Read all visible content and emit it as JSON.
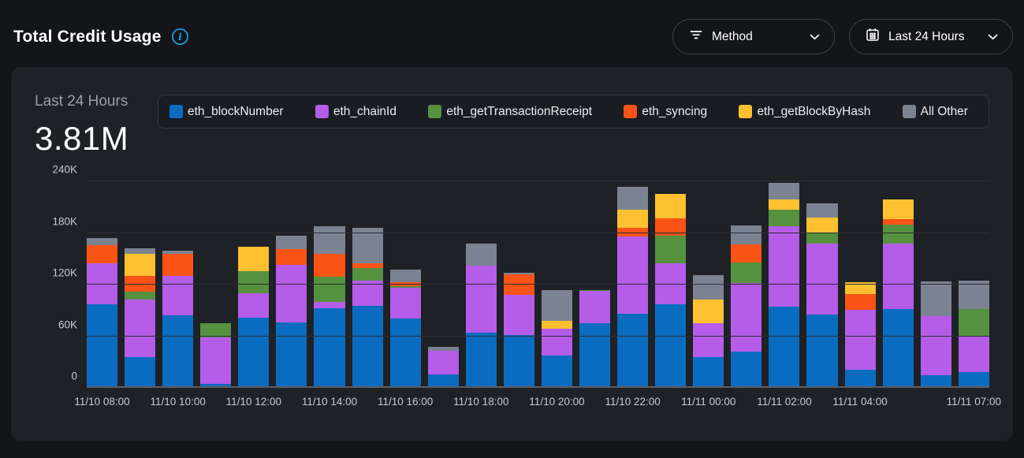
{
  "header": {
    "title": "Total Credit Usage",
    "filters": {
      "method_label": "Method",
      "range_label": "Last 24 Hours"
    }
  },
  "summary": {
    "period_label": "Last 24 Hours",
    "total_value": "3.81M"
  },
  "colors": {
    "accent_blue": "#1f9cea",
    "card_background": "#1e2126",
    "page_background": "#131518"
  },
  "chart_data": {
    "type": "bar",
    "stacked": true,
    "title": "Total Credit Usage - Last 24 Hours",
    "xlabel": "",
    "ylabel": "",
    "ylim": [
      0,
      240000
    ],
    "ytick_labels": [
      "0",
      "60K",
      "120K",
      "180K",
      "240K"
    ],
    "grid": true,
    "legend_position": "top",
    "categories": [
      "11/10 08:00",
      "11/10 09:00",
      "11/10 10:00",
      "11/10 11:00",
      "11/10 12:00",
      "11/10 13:00",
      "11/10 14:00",
      "11/10 15:00",
      "11/10 16:00",
      "11/10 17:00",
      "11/10 18:00",
      "11/10 19:00",
      "11/10 20:00",
      "11/10 21:00",
      "11/10 22:00",
      "11/10 23:00",
      "11/11 00:00",
      "11/11 01:00",
      "11/11 02:00",
      "11/11 03:00",
      "11/11 04:00",
      "11/11 05:00",
      "11/11 06:00",
      "11/11 07:00"
    ],
    "xtick_labels": [
      "11/10 08:00",
      "",
      "11/10 10:00",
      "",
      "11/10 12:00",
      "",
      "11/10 14:00",
      "",
      "11/10 16:00",
      "",
      "11/10 18:00",
      "",
      "11/10 20:00",
      "",
      "11/10 22:00",
      "",
      "11/11 00:00",
      "",
      "11/11 02:00",
      "",
      "11/11 04:00",
      "",
      "",
      "11/11 07:00"
    ],
    "series": [
      {
        "name": "eth_blockNumber",
        "color": "#0a6cc1",
        "values": [
          97000,
          36000,
          84000,
          5000,
          82000,
          76000,
          93000,
          95000,
          81000,
          16000,
          64000,
          61000,
          38000,
          75000,
          86000,
          97000,
          36000,
          42000,
          94000,
          85000,
          21000,
          92000,
          15000,
          18000
        ]
      },
      {
        "name": "eth_chainId",
        "color": "#b55ce9",
        "values": [
          48000,
          67000,
          46000,
          54000,
          28000,
          67000,
          7000,
          30000,
          35000,
          27000,
          78000,
          47000,
          31000,
          38000,
          90000,
          48000,
          39000,
          80000,
          94000,
          83000,
          70000,
          76000,
          68000,
          43000
        ]
      },
      {
        "name": "eth_getTransactionReceipt",
        "color": "#55913f",
        "values": [
          0,
          9000,
          0,
          16000,
          26000,
          0,
          29000,
          14000,
          2000,
          0,
          0,
          0,
          0,
          1000,
          0,
          32000,
          0,
          24000,
          19000,
          12000,
          0,
          22000,
          0,
          31000
        ]
      },
      {
        "name": "eth_syncing",
        "color": "#f95316",
        "values": [
          21000,
          18000,
          26000,
          0,
          0,
          18000,
          27000,
          6000,
          5000,
          0,
          0,
          24000,
          0,
          0,
          10000,
          20000,
          0,
          21000,
          0,
          0,
          18000,
          6000,
          0,
          0
        ]
      },
      {
        "name": "eth_getBlockByHash",
        "color": "#fdc02f",
        "values": [
          0,
          26000,
          0,
          0,
          28000,
          0,
          0,
          0,
          0,
          0,
          0,
          0,
          9000,
          0,
          21000,
          28000,
          28000,
          0,
          12000,
          18000,
          14000,
          23000,
          0,
          0
        ]
      },
      {
        "name": "All Other",
        "color": "#7b8392",
        "values": [
          8000,
          6000,
          3000,
          0,
          0,
          16000,
          32000,
          41000,
          14000,
          5000,
          26000,
          2000,
          36000,
          0,
          27000,
          0,
          28000,
          22000,
          19000,
          16000,
          0,
          0,
          41000,
          33000
        ]
      }
    ]
  }
}
